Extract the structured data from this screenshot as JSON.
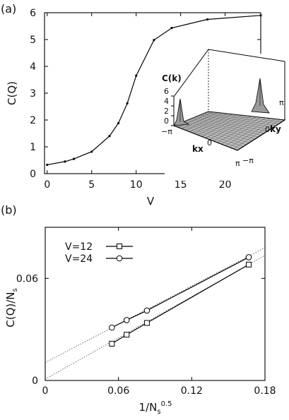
{
  "chart_data": [
    {
      "panel_label": "(a)",
      "type": "line",
      "xlabel": "V",
      "ylabel": "C(Q)",
      "xlim": [
        -0.3,
        24
      ],
      "ylim": [
        0,
        6
      ],
      "xticks": [
        0,
        5,
        10,
        15,
        20
      ],
      "yticks": [
        0,
        1,
        2,
        3,
        4,
        5,
        6
      ],
      "x": [
        0,
        2,
        3,
        5,
        7,
        8,
        9,
        10,
        12,
        14,
        18,
        24
      ],
      "y": [
        0.33,
        0.45,
        0.55,
        0.82,
        1.4,
        1.88,
        2.62,
        3.65,
        4.98,
        5.43,
        5.75,
        5.9
      ],
      "inset": {
        "type": "surface",
        "zlabel": "C(k)",
        "zticks": [
          "6",
          "4",
          "2",
          "0"
        ],
        "x_axis_label": "kx",
        "y_axis_label": "ky",
        "kx_tick_labels": [
          "−π",
          "0",
          "π"
        ],
        "ky_tick_labels": [
          "−π",
          "0",
          "π"
        ],
        "peaks": [
          {
            "kx": "π",
            "ky": "−π"
          },
          {
            "kx": "−π",
            "ky": "π"
          }
        ]
      }
    },
    {
      "panel_label": "(b)",
      "type": "line",
      "xlabel": "1/N",
      "xlabel_sub": "s",
      "xlabel_sup": "0.5",
      "ylabel": "C(Q)/N",
      "ylabel_sub": "s",
      "xlim": [
        0,
        0.18
      ],
      "ylim": [
        0,
        0.09
      ],
      "xticks": [
        "0",
        "0.06",
        "0.12",
        "0.18"
      ],
      "xtick_values": [
        0,
        0.06,
        0.12,
        0.18
      ],
      "yticks": [
        "0",
        "0.06"
      ],
      "ytick_values": [
        0,
        0.06
      ],
      "legend_position": "top-left",
      "series": [
        {
          "name": "V=12",
          "marker": "square",
          "x": [
            0.0546,
            0.0667,
            0.0833,
            0.1667
          ],
          "y": [
            0.0216,
            0.0269,
            0.0338,
            0.0681
          ],
          "fit": {
            "intercept": 0.0008,
            "slope": 0.404
          }
        },
        {
          "name": "V=24",
          "marker": "circle",
          "x": [
            0.0546,
            0.0667,
            0.0833,
            0.1667
          ],
          "y": [
            0.0311,
            0.0355,
            0.0411,
            0.0724
          ],
          "fit": {
            "intercept": 0.0105,
            "slope": 0.375
          }
        }
      ]
    }
  ]
}
